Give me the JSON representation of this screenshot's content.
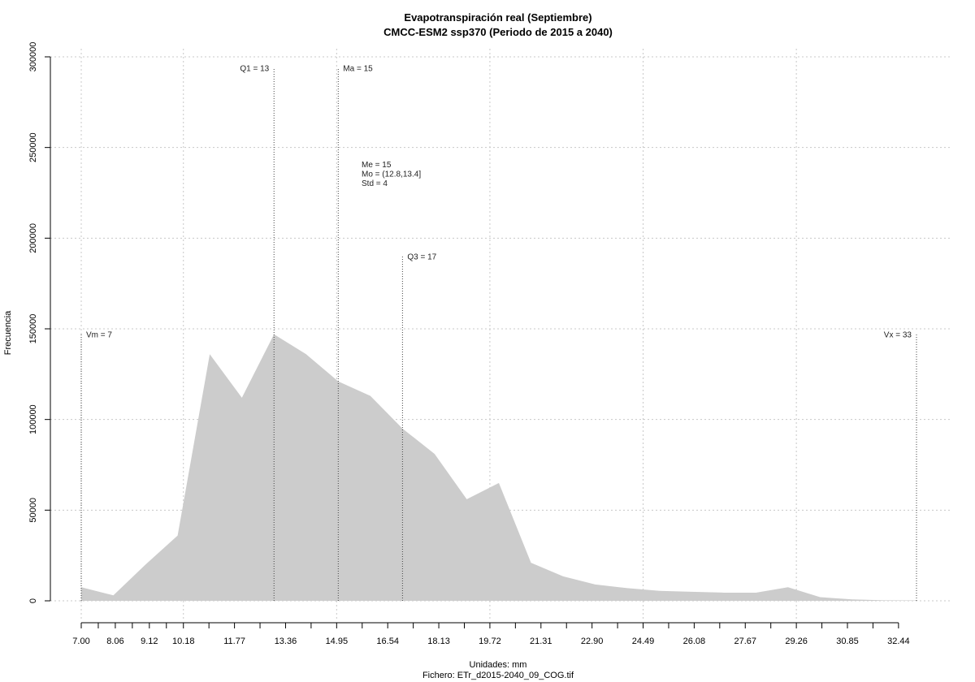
{
  "chart_data": {
    "type": "area",
    "title": "Evapotranspiración real (Septiembre)",
    "subtitle": "CMCC-ESM2 ssp370 (Periodo de 2015 a 2040)",
    "xlabel": "Unidades: mm",
    "caption": "Fichero: ETr_d2015-2040_09_COG.tif",
    "ylabel": "Frecuencia",
    "xlim": [
      7.0,
      33.0
    ],
    "ylim": [
      0,
      300000
    ],
    "x_ticks": [
      "7.00",
      "8.06",
      "9.12",
      "10.18",
      "11.77",
      "13.36",
      "14.95",
      "16.54",
      "18.13",
      "19.72",
      "21.31",
      "22.90",
      "24.49",
      "26.08",
      "27.67",
      "29.26",
      "30.85",
      "32.44"
    ],
    "x_tick_values": [
      7.0,
      8.06,
      9.12,
      10.18,
      11.77,
      13.36,
      14.95,
      16.54,
      18.13,
      19.72,
      21.31,
      22.9,
      24.49,
      26.08,
      27.67,
      29.26,
      30.85,
      32.44
    ],
    "y_ticks": [
      "0",
      "50000",
      "100000",
      "150000",
      "200000",
      "250000",
      "300000"
    ],
    "y_tick_values": [
      0,
      50000,
      100000,
      150000,
      200000,
      250000,
      300000
    ],
    "grid": true,
    "fill_color": "#cccccc",
    "x": [
      7.0,
      8.0,
      9.0,
      10.0,
      11.0,
      12.0,
      13.0,
      14.0,
      15.0,
      16.0,
      17.0,
      18.0,
      19.0,
      20.0,
      21.0,
      22.0,
      23.0,
      24.0,
      25.0,
      26.0,
      27.0,
      28.0,
      29.0,
      30.0,
      31.0,
      32.0,
      33.0
    ],
    "values": [
      7500,
      3000,
      20000,
      36000,
      136000,
      112000,
      147000,
      136000,
      121000,
      113000,
      95000,
      81000,
      56000,
      65000,
      21000,
      13500,
      9000,
      7000,
      5500,
      5000,
      4500,
      4500,
      7500,
      2000,
      800,
      300,
      200
    ],
    "annotations": [
      {
        "label": "Vm = 7",
        "x": 7.0,
        "y_top": 147000,
        "align": "right"
      },
      {
        "label": "Q1 = 13",
        "x": 13.0,
        "y_top": 294000,
        "align": "left"
      },
      {
        "label": "Ma = 15",
        "x": 15.0,
        "y_top": 294000,
        "align": "right"
      },
      {
        "label": "Q3 = 17",
        "x": 17.0,
        "y_top": 190000,
        "align": "right"
      },
      {
        "label": "Vx = 33",
        "x": 33.0,
        "y_top": 147000,
        "align": "left"
      }
    ],
    "stats_text": [
      "Me = 15",
      "Mo = (12.8,13.4]",
      "Std = 4"
    ]
  }
}
